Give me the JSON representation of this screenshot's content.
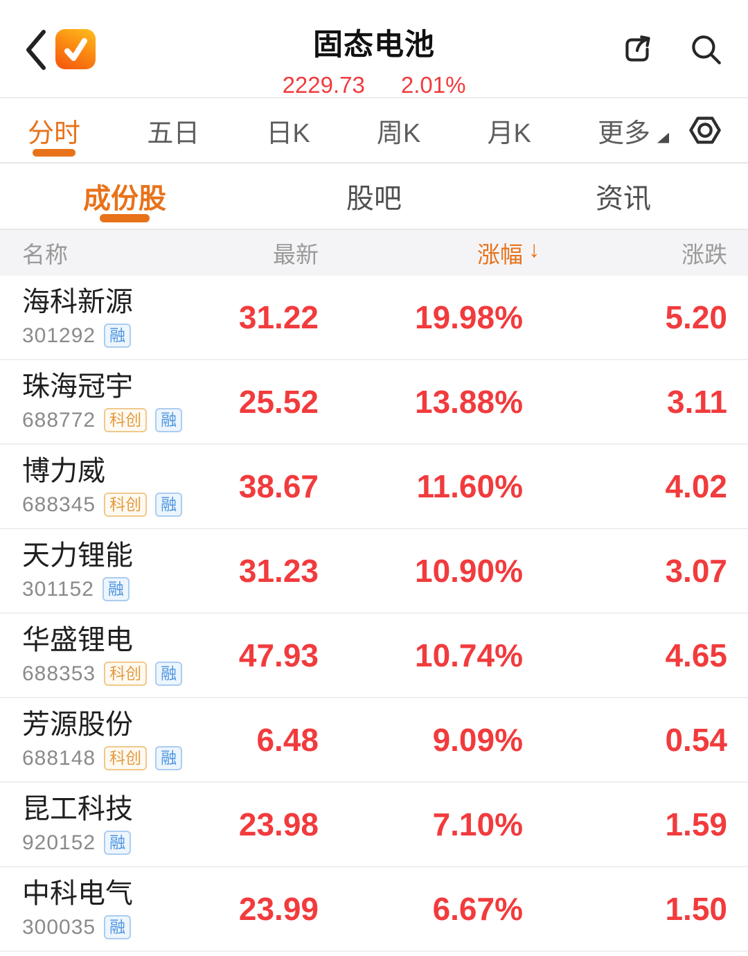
{
  "header": {
    "title": "固态电池",
    "index_value": "2229.73",
    "index_change_percent": "2.01%"
  },
  "period_tabs": {
    "items": [
      {
        "label": "分时",
        "selected": true,
        "has_dropdown": false
      },
      {
        "label": "五日",
        "selected": false,
        "has_dropdown": false
      },
      {
        "label": "日K",
        "selected": false,
        "has_dropdown": false
      },
      {
        "label": "周K",
        "selected": false,
        "has_dropdown": false
      },
      {
        "label": "月K",
        "selected": false,
        "has_dropdown": false
      },
      {
        "label": "更多",
        "selected": false,
        "has_dropdown": true
      }
    ]
  },
  "section_tabs": {
    "items": [
      {
        "label": "成份股",
        "selected": true
      },
      {
        "label": "股吧",
        "selected": false
      },
      {
        "label": "资讯",
        "selected": false
      }
    ]
  },
  "table": {
    "columns": {
      "name": "名称",
      "last": "最新",
      "change_percent": "涨幅",
      "change": "涨跌"
    },
    "sort_arrow": "↓",
    "rows": [
      {
        "name": "海科新源",
        "code": "301292",
        "tags": [
          {
            "text": "融",
            "type": "rong"
          }
        ],
        "last": "31.22",
        "change_percent": "19.98%",
        "change": "5.20"
      },
      {
        "name": "珠海冠宇",
        "code": "688772",
        "tags": [
          {
            "text": "科创",
            "type": "kc"
          },
          {
            "text": "融",
            "type": "rong"
          }
        ],
        "last": "25.52",
        "change_percent": "13.88%",
        "change": "3.11"
      },
      {
        "name": "博力威",
        "code": "688345",
        "tags": [
          {
            "text": "科创",
            "type": "kc"
          },
          {
            "text": "融",
            "type": "rong"
          }
        ],
        "last": "38.67",
        "change_percent": "11.60%",
        "change": "4.02"
      },
      {
        "name": "天力锂能",
        "code": "301152",
        "tags": [
          {
            "text": "融",
            "type": "rong"
          }
        ],
        "last": "31.23",
        "change_percent": "10.90%",
        "change": "3.07"
      },
      {
        "name": "华盛锂电",
        "code": "688353",
        "tags": [
          {
            "text": "科创",
            "type": "kc"
          },
          {
            "text": "融",
            "type": "rong"
          }
        ],
        "last": "47.93",
        "change_percent": "10.74%",
        "change": "4.65"
      },
      {
        "name": "芳源股份",
        "code": "688148",
        "tags": [
          {
            "text": "科创",
            "type": "kc"
          },
          {
            "text": "融",
            "type": "rong"
          }
        ],
        "last": "6.48",
        "change_percent": "9.09%",
        "change": "0.54"
      },
      {
        "name": "昆工科技",
        "code": "920152",
        "tags": [
          {
            "text": "融",
            "type": "rong"
          }
        ],
        "last": "23.98",
        "change_percent": "7.10%",
        "change": "1.59"
      },
      {
        "name": "中科电气",
        "code": "300035",
        "tags": [
          {
            "text": "融",
            "type": "rong"
          }
        ],
        "last": "23.99",
        "change_percent": "6.67%",
        "change": "1.50"
      }
    ]
  },
  "colors": {
    "up_red": "#f13b3d",
    "accent_orange": "#e8721a",
    "tag_star_market_orange": "#e49a3f",
    "tag_margin_blue": "#4e96e0"
  }
}
